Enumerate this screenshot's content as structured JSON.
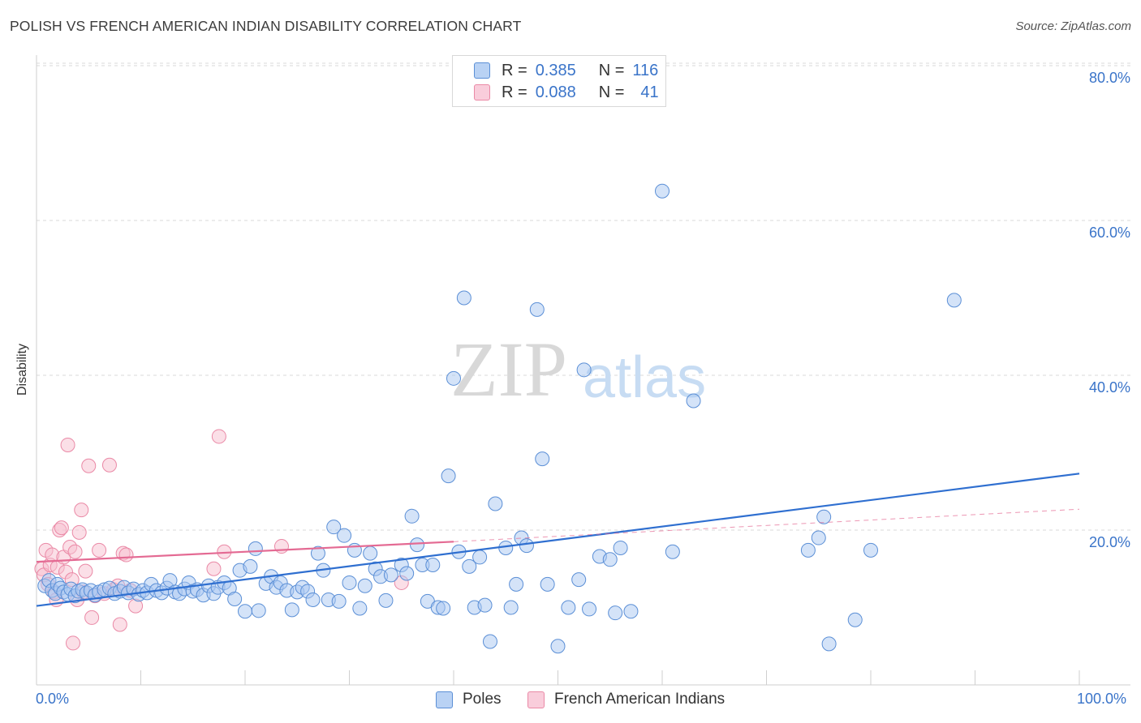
{
  "title": "POLISH VS FRENCH AMERICAN INDIAN DISABILITY CORRELATION CHART",
  "source": "Source: ZipAtlas.com",
  "watermark": {
    "zip": "ZIP",
    "atlas": "atlas"
  },
  "colors": {
    "poles_fill": "#a9c8f2",
    "poles_stroke": "#5b8fd6",
    "poles_line": "#2f6fd0",
    "fai_fill": "#f7bfd0",
    "fai_stroke": "#ea89a6",
    "fai_line": "#e46a93",
    "axis_text": "#3a74c9",
    "grid": "#d9d9d9"
  },
  "legend": {
    "rows": [
      {
        "r_label": "R =",
        "r_value": "0.385",
        "n_label": "N =",
        "n_value": "116"
      },
      {
        "r_label": "R =",
        "r_value": "0.088",
        "n_label": "N =",
        "n_value": "41"
      }
    ]
  },
  "chart_data": {
    "type": "scatter",
    "title": "POLISH VS FRENCH AMERICAN INDIAN DISABILITY CORRELATION CHART",
    "xlabel": "",
    "ylabel": "Disability",
    "xlim": [
      0,
      100
    ],
    "ylim": [
      0,
      80
    ],
    "x_tick_labels": [
      "0.0%",
      "100.0%"
    ],
    "y_tick_labels": [
      "20.0%",
      "40.0%",
      "60.0%",
      "80.0%"
    ],
    "y_ticks": [
      20,
      40,
      60,
      80
    ],
    "grid": "horizontal dashed",
    "legend_position": "top-center",
    "series": [
      {
        "name": "Poles",
        "trend": {
          "x": [
            0,
            100
          ],
          "y": [
            10.2,
            27.3
          ]
        },
        "points": [
          [
            0.8,
            12.8
          ],
          [
            1.2,
            13.5
          ],
          [
            1.5,
            12.2
          ],
          [
            1.8,
            11.8
          ],
          [
            2.0,
            13.0
          ],
          [
            2.3,
            12.5
          ],
          [
            2.6,
            12.0
          ],
          [
            3.0,
            11.7
          ],
          [
            3.3,
            12.4
          ],
          [
            3.7,
            11.5
          ],
          [
            4.0,
            12.1
          ],
          [
            4.4,
            12.3
          ],
          [
            4.8,
            11.9
          ],
          [
            5.2,
            12.2
          ],
          [
            5.6,
            11.6
          ],
          [
            6.0,
            12.0
          ],
          [
            6.5,
            12.3
          ],
          [
            7.0,
            12.5
          ],
          [
            7.5,
            11.8
          ],
          [
            8.0,
            12.1
          ],
          [
            8.4,
            12.6
          ],
          [
            8.8,
            11.9
          ],
          [
            9.3,
            12.4
          ],
          [
            9.8,
            11.7
          ],
          [
            10.2,
            12.2
          ],
          [
            10.6,
            11.9
          ],
          [
            11.0,
            13.0
          ],
          [
            11.5,
            12.2
          ],
          [
            12.0,
            11.9
          ],
          [
            12.5,
            12.5
          ],
          [
            12.8,
            13.5
          ],
          [
            13.3,
            12.0
          ],
          [
            13.7,
            11.8
          ],
          [
            14.2,
            12.4
          ],
          [
            14.6,
            13.2
          ],
          [
            15.0,
            12.1
          ],
          [
            15.4,
            12.3
          ],
          [
            16.0,
            11.6
          ],
          [
            16.5,
            12.8
          ],
          [
            17.0,
            11.8
          ],
          [
            17.4,
            12.6
          ],
          [
            18.0,
            13.2
          ],
          [
            18.5,
            12.5
          ],
          [
            19.0,
            11.1
          ],
          [
            19.5,
            14.8
          ],
          [
            20.0,
            9.5
          ],
          [
            20.5,
            15.3
          ],
          [
            21.0,
            17.6
          ],
          [
            21.3,
            9.6
          ],
          [
            22.0,
            13.1
          ],
          [
            22.5,
            14.0
          ],
          [
            23.0,
            12.6
          ],
          [
            23.4,
            13.2
          ],
          [
            24.0,
            12.2
          ],
          [
            24.5,
            9.7
          ],
          [
            25.0,
            12.0
          ],
          [
            25.5,
            12.6
          ],
          [
            26.0,
            12.1
          ],
          [
            26.5,
            11.0
          ],
          [
            27.0,
            17.0
          ],
          [
            27.5,
            14.8
          ],
          [
            28.0,
            11.0
          ],
          [
            28.5,
            20.4
          ],
          [
            29.0,
            10.8
          ],
          [
            29.5,
            19.3
          ],
          [
            30.0,
            13.2
          ],
          [
            30.5,
            17.4
          ],
          [
            31.0,
            9.9
          ],
          [
            31.5,
            12.8
          ],
          [
            32.0,
            17.0
          ],
          [
            32.5,
            15.0
          ],
          [
            33.0,
            14.0
          ],
          [
            33.5,
            10.9
          ],
          [
            34.0,
            14.2
          ],
          [
            35.0,
            15.5
          ],
          [
            35.5,
            14.4
          ],
          [
            36.0,
            21.8
          ],
          [
            36.5,
            18.1
          ],
          [
            37.0,
            15.5
          ],
          [
            37.5,
            10.8
          ],
          [
            38.0,
            15.5
          ],
          [
            38.5,
            10.0
          ],
          [
            39.0,
            9.9
          ],
          [
            39.5,
            27.0
          ],
          [
            40.0,
            39.6
          ],
          [
            40.5,
            17.2
          ],
          [
            41.0,
            50.0
          ],
          [
            41.5,
            15.3
          ],
          [
            42.0,
            10.0
          ],
          [
            42.5,
            16.5
          ],
          [
            43.0,
            10.3
          ],
          [
            43.5,
            5.6
          ],
          [
            44.0,
            23.4
          ],
          [
            45.0,
            17.7
          ],
          [
            45.5,
            10.0
          ],
          [
            46.0,
            13.0
          ],
          [
            46.5,
            19.0
          ],
          [
            47.0,
            18.0
          ],
          [
            48.0,
            48.5
          ],
          [
            48.5,
            29.2
          ],
          [
            49.0,
            13.0
          ],
          [
            50.0,
            5.0
          ],
          [
            51.0,
            10.0
          ],
          [
            52.0,
            13.6
          ],
          [
            52.5,
            40.7
          ],
          [
            53.0,
            9.8
          ],
          [
            54.0,
            16.6
          ],
          [
            55.0,
            16.2
          ],
          [
            55.5,
            9.3
          ],
          [
            56.0,
            17.7
          ],
          [
            57.0,
            9.5
          ],
          [
            60.0,
            63.8
          ],
          [
            61.0,
            17.2
          ],
          [
            63.0,
            36.7
          ],
          [
            74.0,
            17.4
          ],
          [
            75.0,
            19.0
          ],
          [
            75.5,
            21.7
          ],
          [
            76.0,
            5.3
          ],
          [
            78.5,
            8.4
          ],
          [
            80.0,
            17.4
          ],
          [
            88.0,
            49.7
          ]
        ]
      },
      {
        "name": "French American Indians",
        "trend": {
          "x": [
            0,
            40
          ],
          "y": [
            15.9,
            18.5
          ]
        },
        "trend_extension": {
          "x": [
            40,
            100
          ],
          "y": [
            18.5,
            22.7
          ]
        },
        "points": [
          [
            0.5,
            15.0
          ],
          [
            0.7,
            14.2
          ],
          [
            0.9,
            17.4
          ],
          [
            1.1,
            13.0
          ],
          [
            1.3,
            15.5
          ],
          [
            1.5,
            16.8
          ],
          [
            1.7,
            12.0
          ],
          [
            1.9,
            11.0
          ],
          [
            2.0,
            15.2
          ],
          [
            2.2,
            20.0
          ],
          [
            2.4,
            20.3
          ],
          [
            2.6,
            16.5
          ],
          [
            2.8,
            14.6
          ],
          [
            3.0,
            31.0
          ],
          [
            3.2,
            17.8
          ],
          [
            3.4,
            13.6
          ],
          [
            3.5,
            5.4
          ],
          [
            3.7,
            17.2
          ],
          [
            3.9,
            11.0
          ],
          [
            4.1,
            19.7
          ],
          [
            4.3,
            22.6
          ],
          [
            4.5,
            12.0
          ],
          [
            4.7,
            14.7
          ],
          [
            5.0,
            28.3
          ],
          [
            5.3,
            8.7
          ],
          [
            5.6,
            11.5
          ],
          [
            6.0,
            17.4
          ],
          [
            6.5,
            11.8
          ],
          [
            7.0,
            28.4
          ],
          [
            7.4,
            12.3
          ],
          [
            7.8,
            12.8
          ],
          [
            8.0,
            7.8
          ],
          [
            8.3,
            17.0
          ],
          [
            8.6,
            16.8
          ],
          [
            9.0,
            12.2
          ],
          [
            9.5,
            10.2
          ],
          [
            17.0,
            15.0
          ],
          [
            17.5,
            32.1
          ],
          [
            18.0,
            17.2
          ],
          [
            23.5,
            17.9
          ],
          [
            35.0,
            13.2
          ]
        ]
      }
    ]
  }
}
